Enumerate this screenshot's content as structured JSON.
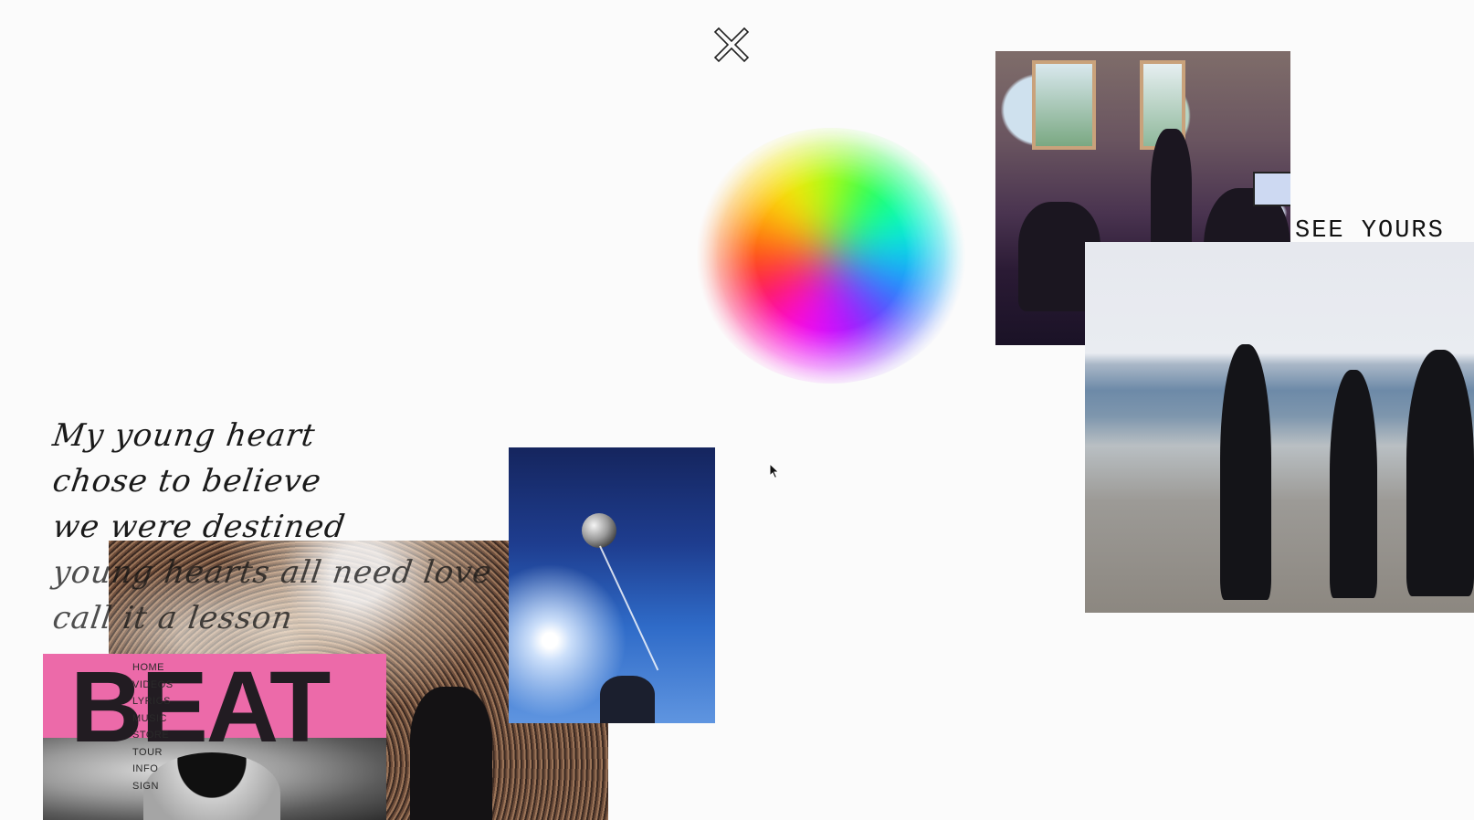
{
  "close_icon": "close-icon",
  "handwriting": {
    "lines": [
      "My young heart",
      "chose to believe",
      "we were destined",
      "young hearts all need love",
      "call it a lesson"
    ]
  },
  "side_text": "SEE YOURS",
  "magazine": {
    "title": "BEAT"
  },
  "nav": {
    "items": [
      "HOME",
      "VIDEOS",
      "LYRICS",
      "MUSIC",
      "STORE",
      "TOUR",
      "INFO",
      "SIGN"
    ]
  },
  "colors": {
    "background": "#fbfbfb",
    "magazine_pink": "#ec6aa9",
    "text": "#1a1a1a"
  }
}
